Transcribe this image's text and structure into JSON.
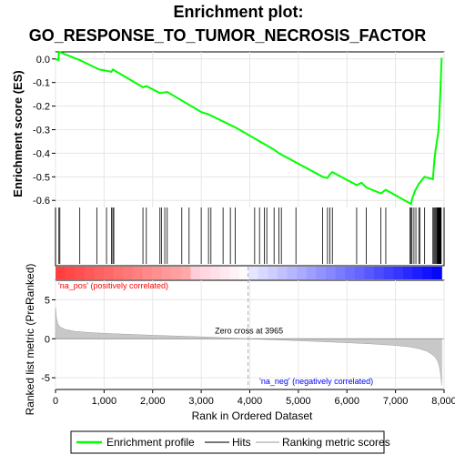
{
  "chart_data": {
    "type": "line",
    "title_line1": "Enrichment plot:",
    "title_line2": "GO_RESPONSE_TO_TUMOR_NECROSIS_FACTOR",
    "ylabel_top": "Enrichment score (ES)",
    "ylabel_bottom": "Ranked list metric (PreRanked)",
    "xlabel": "Rank in Ordered Dataset",
    "x_ticks": [
      0,
      1000,
      2000,
      3000,
      4000,
      5000,
      6000,
      7000,
      8000
    ],
    "es_ticks": [
      0.0,
      -0.1,
      -0.2,
      -0.3,
      -0.4,
      -0.5,
      -0.6
    ],
    "es_tick_labels": [
      "0.0",
      "-0.1",
      "-0.2",
      "-0.3",
      "-0.4",
      "-0.5",
      "-0.6"
    ],
    "metric_ticks": [
      5,
      0,
      -5
    ],
    "xlim": [
      0,
      8000
    ],
    "es_ylim": [
      -0.63,
      0.03
    ],
    "metric_ylim": [
      -6.5,
      7.5
    ],
    "total_genes": 7950,
    "zero_cross": 3965,
    "zero_cross_label": "Zero cross at 3965",
    "pos_label": "'na_pos' (positively correlated)",
    "neg_label": "'na_neg' (negatively correlated)",
    "line_color": "#00ff00",
    "pos_color": "#ff0000",
    "neg_color": "#0000ff",
    "legend": [
      {
        "label": "Enrichment profile",
        "color": "#00ff00"
      },
      {
        "label": "Hits",
        "color": "#777777"
      },
      {
        "label": "Ranking metric scores",
        "color": "#cccccc"
      }
    ],
    "es_profile": {
      "x": [
        0,
        60,
        70,
        500,
        850,
        900,
        1050,
        1150,
        1180,
        1800,
        1870,
        2150,
        2300,
        3000,
        3150,
        3700,
        4500,
        4600,
        5500,
        5600,
        5650,
        5700,
        6200,
        6300,
        6400,
        6700,
        6800,
        7320,
        7340,
        7400,
        7480,
        7600,
        7770,
        7800,
        7830,
        7860,
        7880,
        7900,
        7910,
        7920,
        7930,
        7940,
        7950
      ],
      "y": [
        0.0,
        -0.005,
        0.03,
        -0.005,
        -0.04,
        -0.045,
        -0.05,
        -0.055,
        -0.045,
        -0.12,
        -0.115,
        -0.145,
        -0.14,
        -0.225,
        -0.235,
        -0.29,
        -0.385,
        -0.4,
        -0.5,
        -0.505,
        -0.49,
        -0.48,
        -0.535,
        -0.525,
        -0.545,
        -0.57,
        -0.555,
        -0.615,
        -0.595,
        -0.56,
        -0.53,
        -0.5,
        -0.51,
        -0.43,
        -0.38,
        -0.34,
        -0.31,
        -0.25,
        -0.2,
        -0.16,
        -0.1,
        -0.05,
        0.005
      ]
    },
    "hits": [
      70,
      90,
      500,
      850,
      1050,
      1150,
      1180,
      1200,
      1800,
      1870,
      2150,
      2180,
      2250,
      2300,
      2600,
      2750,
      3000,
      3150,
      3200,
      3450,
      3600,
      3700,
      4100,
      4200,
      4300,
      4350,
      4500,
      4600,
      4650,
      4950,
      5500,
      5600,
      5650,
      5700,
      6200,
      6400,
      6700,
      6800,
      7300,
      7320,
      7340,
      7380,
      7420,
      7480,
      7500,
      7600,
      7770,
      7790,
      7810,
      7830,
      7850,
      7860,
      7870,
      7880,
      7890,
      7900,
      7910,
      7920,
      7930,
      7940
    ],
    "metric_profile": {
      "x": [
        0,
        20,
        50,
        100,
        200,
        400,
        700,
        1000,
        2000,
        3000,
        3965,
        5000,
        6000,
        6500,
        7000,
        7300,
        7500,
        7650,
        7750,
        7820,
        7870,
        7900,
        7920,
        7940,
        7950
      ],
      "y": [
        4.0,
        2.6,
        1.9,
        1.5,
        1.2,
        0.95,
        0.8,
        0.7,
        0.45,
        0.25,
        0.0,
        -0.25,
        -0.5,
        -0.65,
        -0.85,
        -1.05,
        -1.3,
        -1.6,
        -2.0,
        -2.4,
        -2.9,
        -3.5,
        -4.2,
        -5.2,
        -6.0
      ]
    }
  }
}
